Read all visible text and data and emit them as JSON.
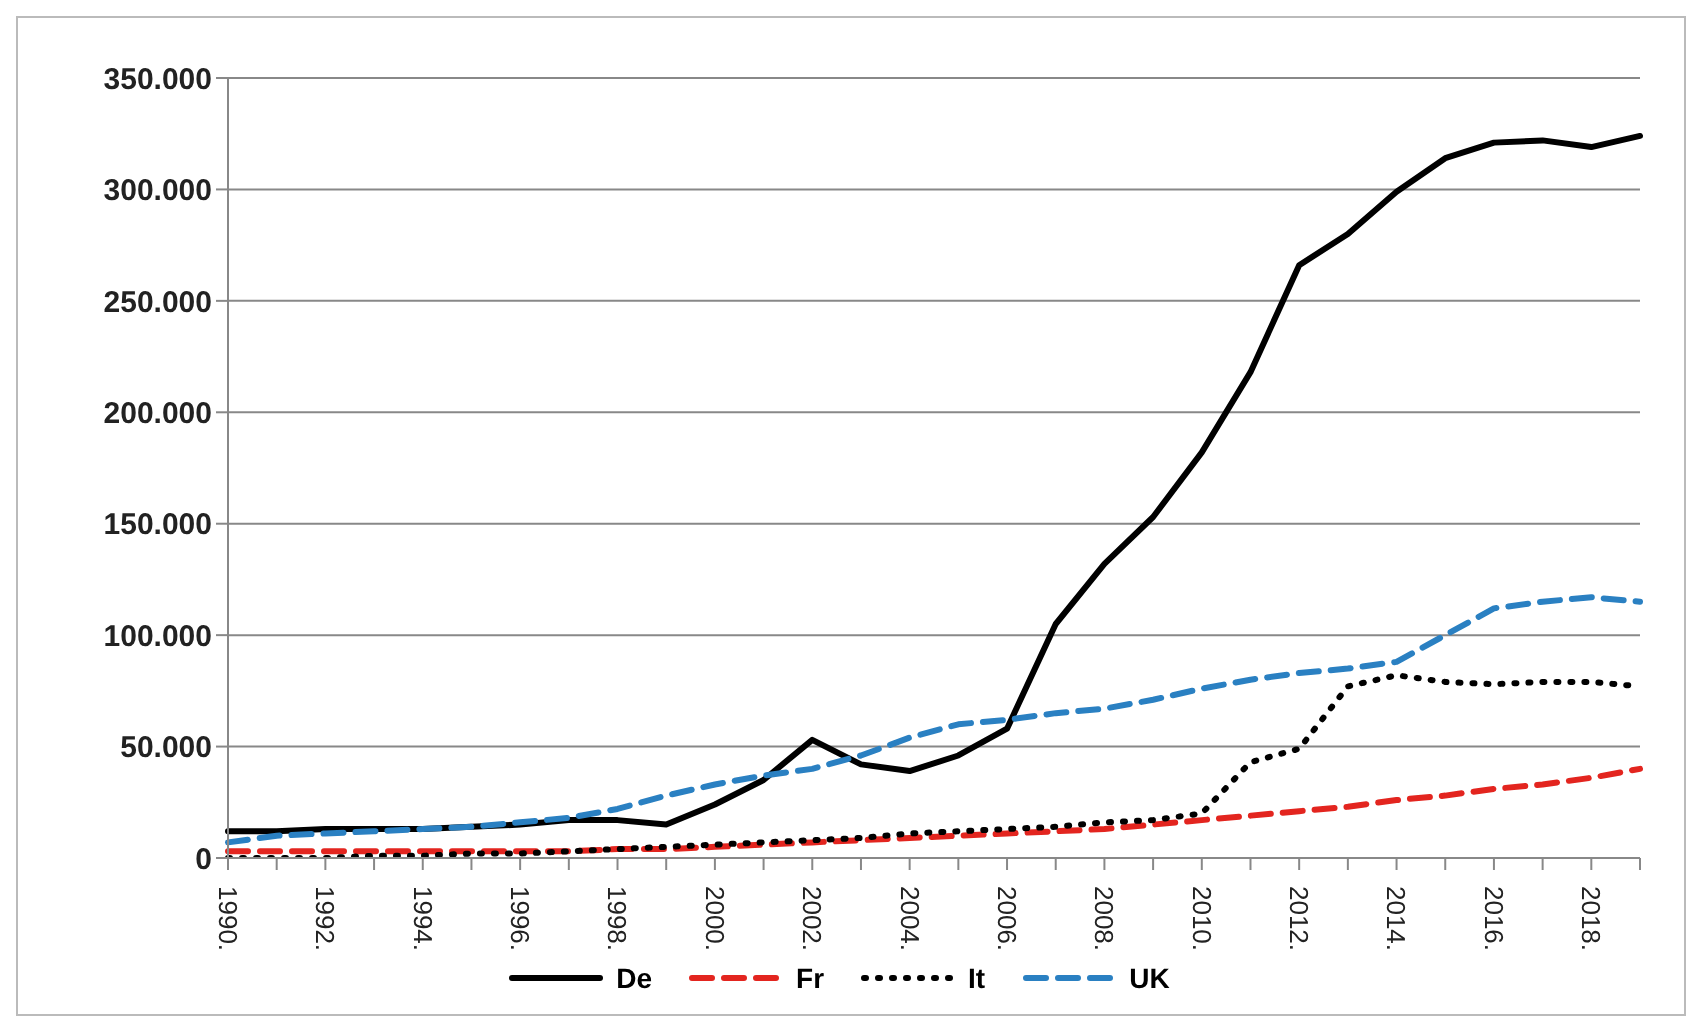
{
  "chart_data": {
    "type": "line",
    "categories": [
      "1990.",
      null,
      "1992.",
      null,
      "1994.",
      null,
      "1996.",
      null,
      "1998.",
      null,
      "2000.",
      null,
      "2002.",
      null,
      "2004.",
      null,
      "2006.",
      null,
      "2008.",
      null,
      "2010.",
      null,
      "2012.",
      null,
      "2014.",
      null,
      "2016.",
      null,
      "2018.",
      null
    ],
    "series": [
      {
        "name": "De",
        "color": "#000000",
        "line_style": "solid",
        "values": [
          12000,
          12000,
          13000,
          13000,
          13000,
          14000,
          15000,
          17000,
          17000,
          15000,
          24000,
          35000,
          53000,
          42000,
          39000,
          46000,
          58000,
          105000,
          132000,
          153000,
          182000,
          218000,
          266000,
          280000,
          299000,
          314000,
          321000,
          322000,
          319000,
          324000
        ]
      },
      {
        "name": "Fr",
        "color": "#e3251f",
        "line_style": "dashed",
        "values": [
          3000,
          3000,
          3000,
          3000,
          3000,
          3000,
          3000,
          3000,
          4000,
          4000,
          5000,
          6000,
          7000,
          8000,
          9000,
          10000,
          11000,
          12000,
          13000,
          15000,
          17000,
          19000,
          21000,
          23000,
          26000,
          28000,
          31000,
          33000,
          36000,
          40000
        ]
      },
      {
        "name": "It",
        "color": "#000000",
        "line_style": "dotted",
        "values": [
          0,
          0,
          0,
          1000,
          1000,
          2000,
          2000,
          3000,
          4000,
          5000,
          6000,
          7000,
          8000,
          9000,
          11000,
          12000,
          13000,
          14000,
          16000,
          17000,
          20000,
          43000,
          49000,
          77000,
          82000,
          79000,
          78000,
          79000,
          79000,
          77000
        ]
      },
      {
        "name": "UK",
        "color": "#2a80c2",
        "line_style": "dashed",
        "values": [
          7000,
          10000,
          11000,
          12000,
          13000,
          14000,
          16000,
          18000,
          22000,
          28000,
          33000,
          37000,
          40000,
          46000,
          54000,
          60000,
          62000,
          65000,
          67000,
          71000,
          76000,
          80000,
          83000,
          85000,
          88000,
          100000,
          112000,
          115000,
          117000,
          115000
        ]
      }
    ],
    "ylim": [
      0,
      350000
    ],
    "yticks": [
      0,
      {
        "value": 50000,
        "label": "50.000"
      },
      {
        "value": 100000,
        "label": "100.000"
      },
      {
        "value": 150000,
        "label": "150.000"
      },
      {
        "value": 200000,
        "label": "200.000"
      },
      {
        "value": 250000,
        "label": "250.000"
      },
      {
        "value": 300000,
        "label": "300.000"
      },
      {
        "value": 350000,
        "label": "350.000"
      }
    ],
    "grid": "y",
    "legend": "bottom",
    "marker": "none"
  }
}
